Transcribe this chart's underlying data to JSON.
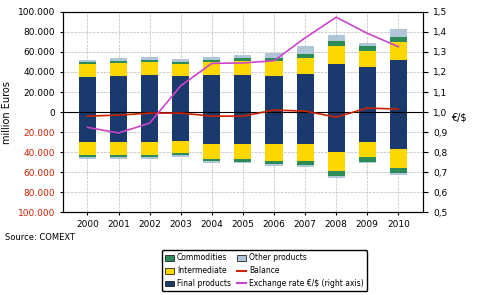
{
  "years": [
    2000,
    2001,
    2002,
    2003,
    2004,
    2005,
    2006,
    2007,
    2008,
    2009,
    2010
  ],
  "exports": {
    "final_products": [
      35000,
      36000,
      37000,
      36000,
      37000,
      37000,
      36000,
      38000,
      48000,
      45000,
      52000
    ],
    "intermediate": [
      13000,
      13000,
      13000,
      12000,
      13000,
      14000,
      15000,
      16000,
      18000,
      16000,
      18000
    ],
    "commodities": [
      2000,
      2000,
      2000,
      2000,
      2000,
      2500,
      3000,
      4000,
      5000,
      4500,
      5000
    ],
    "other_products": [
      2000,
      3000,
      3000,
      2500,
      3000,
      3000,
      5000,
      8000,
      6000,
      3500,
      8000
    ]
  },
  "imports": {
    "final_products": [
      30000,
      30000,
      30000,
      29000,
      32000,
      32000,
      32000,
      32000,
      40000,
      30000,
      37000
    ],
    "intermediate": [
      13000,
      13000,
      13000,
      12000,
      15000,
      15000,
      17000,
      17000,
      19000,
      15000,
      19000
    ],
    "commodities": [
      2000,
      2000,
      2000,
      2000,
      2000,
      2500,
      3000,
      4000,
      5000,
      4500,
      5000
    ],
    "other_products": [
      1500,
      1500,
      1500,
      1500,
      1500,
      1500,
      2000,
      2000,
      2000,
      1500,
      2000
    ]
  },
  "balance": [
    -4000,
    -3000,
    -1000,
    -1000,
    -4000,
    -4000,
    2000,
    1000,
    -5000,
    4000,
    3000
  ],
  "exchange_rate": [
    0.924,
    0.896,
    0.945,
    1.131,
    1.243,
    1.245,
    1.256,
    1.37,
    1.473,
    1.393,
    1.326
  ],
  "ylim": [
    -100000,
    100000
  ],
  "yticks": [
    -100000,
    -80000,
    -60000,
    -40000,
    -20000,
    0,
    20000,
    40000,
    60000,
    80000,
    100000
  ],
  "y2lim": [
    0.5,
    1.5
  ],
  "y2ticks": [
    0.5,
    0.6,
    0.7,
    0.8,
    0.9,
    1.0,
    1.1,
    1.2,
    1.3,
    1.4,
    1.5
  ],
  "color_commodities": "#2d8b57",
  "color_intermediate": "#ffd700",
  "color_other": "#aec6d8",
  "color_final": "#1a3a6e",
  "color_balance": "#cc2200",
  "color_exchange": "#cc44cc",
  "ylabel_left": "million Euros",
  "ylabel_right": "€/$",
  "source": "Source: COMEXT",
  "bar_width": 0.55
}
